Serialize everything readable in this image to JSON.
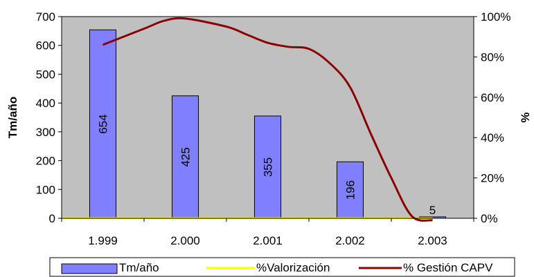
{
  "chart_data": {
    "type": "bar",
    "categories": [
      "1.999",
      "2.000",
      "2.001",
      "2.002",
      "2.003"
    ],
    "series": [
      {
        "name": "Tm/año",
        "type": "bar",
        "axis": "left",
        "color": "#7f7fff",
        "values": [
          654,
          425,
          355,
          196,
          5
        ]
      },
      {
        "name": "%Valorización",
        "type": "line",
        "axis": "right",
        "color": "#ffff00",
        "values": [
          0,
          0,
          0,
          0,
          0
        ]
      },
      {
        "name": "% Gestión CAPV",
        "type": "line",
        "axis": "right",
        "color": "#8b0000",
        "x": [
          0,
          0.5,
          0.75,
          1,
          1.5,
          1.75,
          2,
          2.25,
          2.5,
          2.75,
          3,
          3.25,
          3.5,
          3.75,
          4
        ],
        "values": [
          0.86,
          0.94,
          0.98,
          0.99,
          0.95,
          0.91,
          0.87,
          0.85,
          0.84,
          0.77,
          0.65,
          0.42,
          0.2,
          0.01,
          -0.01
        ]
      }
    ],
    "ylabel": "Tm/año",
    "y2label": "%",
    "ylim": [
      0,
      700
    ],
    "y_ticks": [
      "0",
      "100",
      "200",
      "300",
      "400",
      "500",
      "600",
      "700"
    ],
    "y2lim": [
      0,
      1
    ],
    "y2_ticks": [
      "0%",
      "20%",
      "40%",
      "60%",
      "80%",
      "100%"
    ],
    "data_labels": [
      "654",
      "425",
      "355",
      "196",
      "5"
    ],
    "plot_background": "#c0c0c0",
    "grid": false,
    "legend_position": "bottom"
  }
}
